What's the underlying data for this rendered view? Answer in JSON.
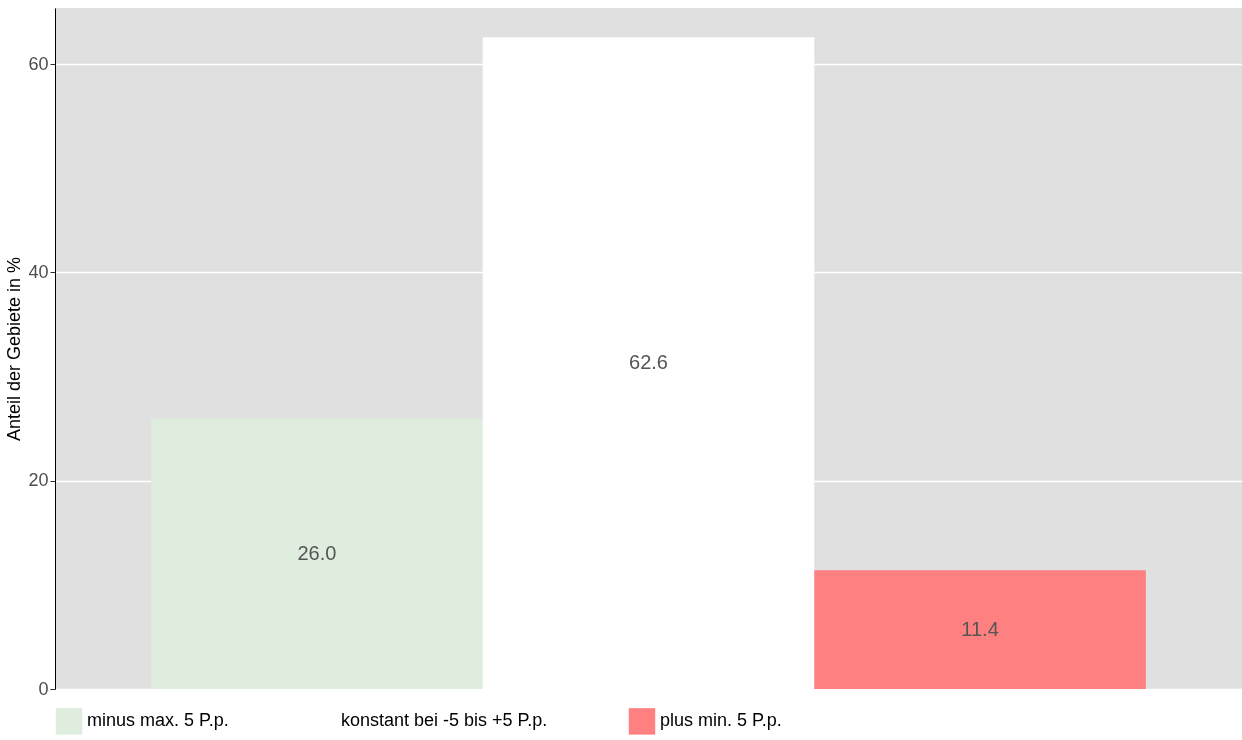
{
  "chart_data": {
    "type": "bar",
    "ylabel": "Anteil der Gebiete in %",
    "categories": [
      null,
      null,
      null
    ],
    "series": [
      {
        "name": "minus max. 5 P.p.",
        "color": "#dfeddf",
        "values": [
          26.0,
          null,
          null
        ],
        "value_labels": [
          "26.0",
          null,
          null
        ]
      },
      {
        "name": "konstant bei -5 bis +5 P.p.",
        "color": "#ffffff",
        "values": [
          null,
          62.6,
          null
        ],
        "value_labels": [
          null,
          "62.6",
          null
        ]
      },
      {
        "name": "plus min. 5 P.p.",
        "color": "#ff8080",
        "values": [
          null,
          null,
          11.4
        ],
        "value_labels": [
          null,
          null,
          "11.4"
        ]
      }
    ],
    "ylim": [
      0,
      65.4
    ],
    "yticks": [
      0,
      20,
      40,
      60
    ],
    "grid": "y",
    "legend": "bottom"
  }
}
